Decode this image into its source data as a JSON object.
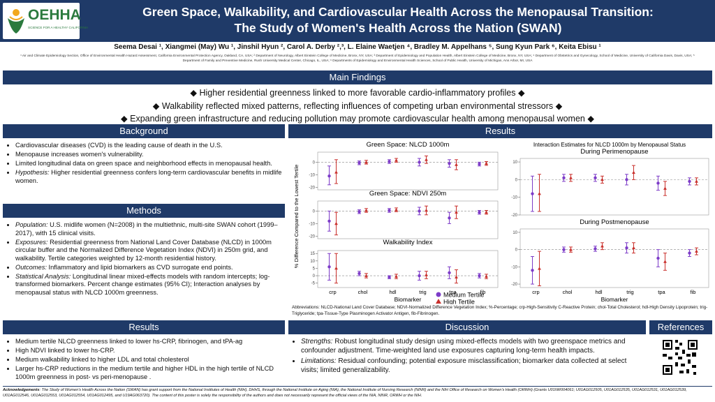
{
  "header": {
    "logo_name": "OEHHA",
    "logo_tagline": "SCIENCE FOR A HEALTHY CALIFORNIA",
    "title_lines": [
      "Green Space, Walkability, and Cardiovascular Health Across the Menopausal Transition:",
      "The Study of Women's Health Across the Nation (SWAN)"
    ],
    "authors": "Seema Desai ¹, Xiangmei (May) Wu ¹, Jinshil Hyun ², Carol A. Derby ²,³, L. Elaine Waetjen ⁴, Bradley M. Appelhans ⁵, Sung Kyun Park ⁶, Keita Ebisu ¹",
    "affiliations": "¹ Air and Climate Epidemiology Section, Office of Environmental Health Hazard Assessment, California Environmental Protection Agency, Oakland, CA, USA; ² Department of Neurology, Albert Einstein College of Medicine, Bronx, NY, USA; ³ Department of Epidemiology and Population Health, Albert Einstein College of Medicine, Bronx, NY, USA; ⁴ Department of Obstetrics and Gynecology, School of Medicine, University of California Davis, Davis, USA; ⁵ Department of Family and Preventive Medicine, Rush University Medical Center, Chicago, IL, USA; ⁶ Departments of Epidemiology and Environmental Health Sciences, School of Public Health, University of Michigan, Ann Arbor, MI, USA"
  },
  "main_findings": {
    "title": "Main Findings",
    "items": [
      "◆ Higher residential greenness linked to more favorable cardio-inflammatory profiles ◆",
      "◆ Walkability reflected mixed patterns, reflecting influences of competing urban environmental stressors ◆",
      "◆ Expanding green infrastructure and reducing pollution may promote cardiovascular health among menopausal women ◆"
    ]
  },
  "background": {
    "title": "Background",
    "items": [
      {
        "label": "",
        "text": "Cardiovascular diseases (CVD) is the leading cause of death in the U.S."
      },
      {
        "label": "",
        "text": "Menopause increases women's vulnerability."
      },
      {
        "label": "",
        "text": "Limited longitudinal data on green space and neighborhood effects in menopausal health."
      },
      {
        "label": "Hypothesis:",
        "text": "Higher residential greenness confers long-term cardiovascular benefits in midlife women."
      }
    ]
  },
  "methods": {
    "title": "Methods",
    "items": [
      {
        "label": "Population:",
        "text": "U.S. midlife women (N=2008) in the multiethnic, multi-site SWAN cohort (1999–2017), with 15 clinical visits."
      },
      {
        "label": "Exposures:",
        "text": "Residential greenness from National Land Cover Database (NLCD) in 1000m circular buffer and the Normalized Difference Vegetation Index (NDVI) in 250m grid, and walkability. Tertile categories weighted by 12-month residential history."
      },
      {
        "label": "Outcomes:",
        "text": "Inflammatory and lipid biomarkers as CVD surrogate end points."
      },
      {
        "label": "Statistical Analysis:",
        "text": "Longitudinal linear mixed-effects models with random intercepts; log-transformed biomarkers. Percent change estimates (95% CI); Interaction analyses by menopausal status with NLCD 1000m greenness."
      }
    ]
  },
  "results_summary": {
    "title": "Results",
    "items": [
      "Medium tertile NLCD greenness linked to lower hs-CRP, fibrinogen, and tPA-ag",
      "High NDVI linked to lower hs-CRP.",
      "Medium walkability linked to higher LDL and total cholesterol",
      "Larger hs-CRP reductions in the medium tertile and higher HDL in the high tertile of NLCD 1000m greenness in post- vs peri-menopause ."
    ]
  },
  "results_figures": {
    "title": "Results",
    "categories": [
      "crp",
      "chol",
      "hdl",
      "trig",
      "tpa",
      "fib"
    ],
    "legend": [
      {
        "name": "Medium Tertile",
        "color": "#7d3cc8"
      },
      {
        "name": "High Tertile",
        "color": "#c9302c"
      }
    ],
    "left_chart": {
      "y_label": "% Difference Compared to the Lowest Tertile",
      "x_label": "Biomarker",
      "panels": [
        {
          "title": "Green Space: NLCD 1000m",
          "ylim": [
            -22,
            8
          ],
          "yticks": [
            0,
            -10,
            -20
          ],
          "series": [
            {
              "values": [
                -11,
                -0.5,
                0.5,
                0,
                -1,
                -1.5
              ],
              "lower": [
                -18,
                -2,
                -1,
                -3,
                -4,
                -3
              ],
              "upper": [
                -3,
                1,
                2,
                3,
                2,
                0
              ]
            },
            {
              "values": [
                -8,
                0,
                1.5,
                2,
                -2,
                -1
              ],
              "lower": [
                -17,
                -1.5,
                0,
                -1,
                -6,
                -2.5
              ],
              "upper": [
                2,
                1.5,
                3,
                5,
                2,
                0.5
              ]
            }
          ]
        },
        {
          "title": "Green Space: NDVI 250m",
          "ylim": [
            -22,
            8
          ],
          "yticks": [
            0,
            -10,
            -20
          ],
          "series": [
            {
              "values": [
                -8,
                -0.5,
                0.5,
                0,
                -5.5,
                -1
              ],
              "lower": [
                -16,
                -2,
                -1,
                -3,
                -10,
                -2.5
              ],
              "upper": [
                0,
                1,
                2,
                3,
                -1,
                0.5
              ]
            },
            {
              "values": [
                -10,
                0.5,
                1,
                0.5,
                -1,
                -1
              ],
              "lower": [
                -19,
                -1,
                -0.5,
                -3,
                -6,
                -2.5
              ],
              "upper": [
                -1,
                2,
                2.5,
                4,
                4,
                0.5
              ]
            }
          ]
        },
        {
          "title": "Walkability Index",
          "ylim": [
            -8,
            17
          ],
          "yticks": [
            15,
            10,
            5,
            0,
            -5
          ],
          "series": [
            {
              "values": [
                6,
                1.5,
                -1,
                0,
                2,
                0
              ],
              "lower": [
                -3,
                0,
                -2,
                -3,
                -2,
                -1.5
              ],
              "upper": [
                15,
                3,
                0,
                3,
                6,
                1.5
              ]
            },
            {
              "values": [
                5,
                0,
                -0.5,
                0.5,
                -1,
                -0.5
              ],
              "lower": [
                -5,
                -1.5,
                -2,
                -2,
                -5,
                -2
              ],
              "upper": [
                15,
                1.5,
                1,
                3,
                4,
                1
              ]
            }
          ]
        }
      ]
    },
    "right_chart": {
      "title": "Interaction Estimates for NLCD 1000m by Menopausal Status",
      "x_label": "Biomarker",
      "panels": [
        {
          "title": "During Perimenopause",
          "ylim": [
            -20,
            12
          ],
          "yticks": [
            10,
            0,
            -10,
            -20
          ],
          "series": [
            {
              "values": [
                -8,
                1,
                1,
                0,
                -2,
                -1
              ],
              "lower": [
                -18,
                -1,
                -1,
                -3,
                -6,
                -3
              ],
              "upper": [
                2,
                3,
                3,
                3,
                2,
                1
              ]
            },
            {
              "values": [
                -8,
                1,
                0,
                4,
                -5,
                -1
              ],
              "lower": [
                -18,
                -1,
                -2,
                0,
                -9,
                -3
              ],
              "upper": [
                3,
                3,
                2,
                8,
                -1,
                1
              ]
            }
          ]
        },
        {
          "title": "During Postmenopause",
          "ylim": [
            -22,
            12
          ],
          "yticks": [
            10,
            0,
            -10,
            -20
          ],
          "series": [
            {
              "values": [
                -12,
                0,
                0.5,
                1,
                -5,
                -2
              ],
              "lower": [
                -20,
                -1.5,
                -1,
                -2,
                -10,
                -4
              ],
              "upper": [
                -4,
                1.5,
                2,
                4,
                0,
                0
              ]
            },
            {
              "values": [
                -11,
                0,
                2,
                1,
                -7,
                -1
              ],
              "lower": [
                -21,
                -1.5,
                0,
                -2,
                -12,
                -3
              ],
              "upper": [
                -1,
                1.5,
                4,
                4,
                -2,
                1
              ]
            }
          ]
        }
      ]
    },
    "abbreviations": "Abbreviations: NLCD-National Land Cover Database; NDVI-Normalized Difference Vegetation Index; %-Percentage; crp-High-Sensitivity C-Reactive Protein; chol-Total Cholesterol; hdl-High Density Lipoprotein; trig-Triglyceride; tpa-Tissue-Type Plasminogen Activator Antigen, fib-Fibrinogen."
  },
  "discussion": {
    "title": "Discussion",
    "items": [
      {
        "label": "Strengths:",
        "text": "Robust longitudinal study design using mixed-effects models with two greenspace metrics and confounder adjustment. Time-weighted land use exposures capturing long-term health impacts."
      },
      {
        "label": "Limitations:",
        "text": "Residual confounding; potential exposure misclassification; biomarker data collected at select visits; limited generalizability."
      }
    ]
  },
  "references": {
    "title": "References"
  },
  "acknowledgements": {
    "label": "Acknowledgements",
    "text": ": The Study of Women's Health Across the Nation (SWAN) has grant support from the National Institutes of Health (NIH), DHHS, through the National Institute on Aging (NIA), the National Institute of Nursing Research (NINR) and the NIH Office of Research on Women's Health (ORWH) (Grants U01NR004061; U01AG012505, U01AG012535, U01AG012531, U01AG012539, U01AG012546, U01AG012553, U01AG012554, U01AG012495, and U19AG063720). The content of this poster is solely the responsibility of the authors and does not necessarily represent the official views of the NIA, NINR, ORWH or the NIH."
  }
}
